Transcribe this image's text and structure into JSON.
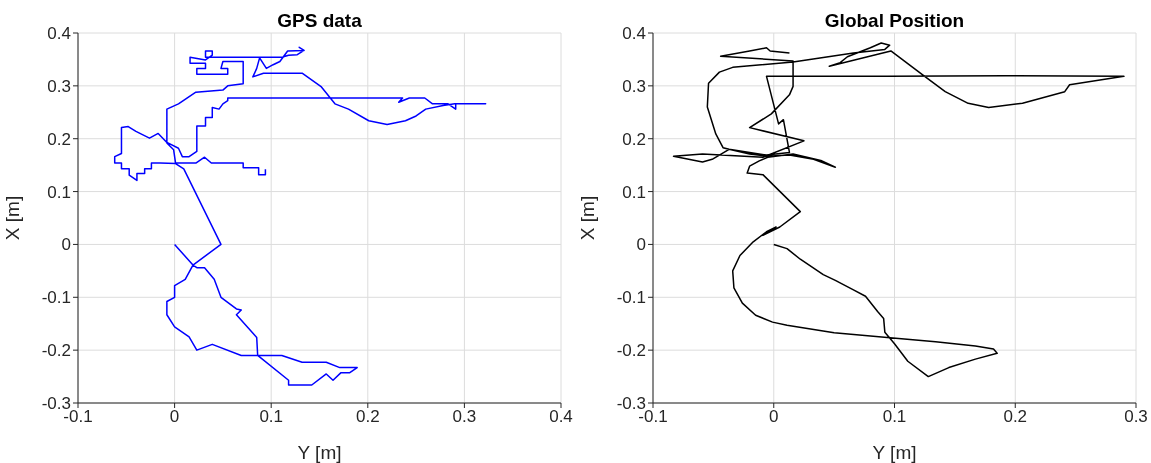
{
  "chart_data": [
    {
      "type": "line",
      "title": "GPS data",
      "xlabel": "Y [m]",
      "ylabel": "X [m]",
      "xlim": [
        -0.1,
        0.4
      ],
      "xticks": [
        -0.1,
        0,
        0.1,
        0.2,
        0.3,
        0.4
      ],
      "ylim": [
        -0.3,
        0.4
      ],
      "yticks": [
        -0.3,
        -0.2,
        -0.1,
        0,
        0.1,
        0.2,
        0.3,
        0.4
      ],
      "grid": true,
      "series": [
        {
          "color": "#0000ff",
          "x": [
            0,
            0.019,
            0.023,
            0.031,
            0.041,
            0.048,
            0.064,
            0.069,
            0.064,
            0.085,
            0.086,
            0.111,
            0.132,
            0.157,
            0.171,
            0.189,
            0.181,
            0.172,
            0.164,
            0.157,
            0.142,
            0.118,
            0.118,
            0.086,
            0.069,
            0.039,
            0.023,
            0.015,
            0,
            -0.008,
            -0.008,
            0,
            0,
            0.011,
            0.019,
            0.048,
            0.0095,
            0.001,
            -0.015,
            -0.024,
            -0.024,
            -0.031,
            -0.031,
            -0.039,
            -0.039,
            -0.047,
            -0.047,
            -0.055,
            -0.055,
            -0.062,
            -0.062,
            -0.055,
            -0.055,
            -0.048,
            -0.04,
            -0.026,
            -0.017,
            -0.008,
            0.004,
            0.008,
            0.015,
            0.023,
            0.023,
            0.032,
            0.032,
            0.039,
            0.039,
            0.046,
            0.05,
            0.055,
            0.055,
            0.236,
            0.232,
            0.243,
            0.259,
            0.267,
            0.283,
            0.291,
            0.291,
            0.322,
            0.29,
            0.278,
            0.26,
            0.25,
            0.239,
            0.22,
            0.201,
            0.18,
            0.166,
            0.152,
            0.132,
            0.092,
            0.081,
            0.085,
            0.088,
            0.095,
            0.102,
            0.109,
            0.113,
            0.117,
            0.134,
            0.129,
            0.134,
            0.127,
            0.118,
            0.111,
            0.032,
            0.032,
            0.039,
            0.039,
            0.032,
            0.016,
            0.016,
            0.032,
            0.032,
            0.023,
            0.023,
            0.055,
            0.055,
            0.048,
            0.05,
            0.071,
            0.071,
            0.071,
            0.055,
            0.05,
            0.022,
            0.004,
            -0.008,
            -0.008,
            -0.001,
            0.001,
            0.022,
            0.031,
            0.038,
            0.071,
            0.071,
            0.087,
            0.087,
            0.094,
            0.094
          ],
          "values": [
            0,
            -0.039,
            -0.044,
            -0.044,
            -0.066,
            -0.1,
            -0.122,
            -0.124,
            -0.133,
            -0.176,
            -0.21,
            -0.21,
            -0.223,
            -0.223,
            -0.233,
            -0.233,
            -0.243,
            -0.243,
            -0.257,
            -0.245,
            -0.266,
            -0.266,
            -0.257,
            -0.21,
            -0.21,
            -0.189,
            -0.2,
            -0.175,
            -0.156,
            -0.133,
            -0.108,
            -0.1,
            -0.078,
            -0.066,
            -0.039,
            0,
            0.143,
            0.153,
            0.154,
            0.154,
            0.143,
            0.143,
            0.134,
            0.134,
            0.121,
            0.131,
            0.143,
            0.143,
            0.154,
            0.154,
            0.166,
            0.172,
            0.221,
            0.223,
            0.214,
            0.201,
            0.21,
            0.193,
            0.182,
            0.166,
            0.166,
            0.176,
            0.224,
            0.224,
            0.24,
            0.24,
            0.259,
            0.256,
            0.266,
            0.272,
            0.277,
            0.277,
            0.269,
            0.277,
            0.277,
            0.266,
            0.266,
            0.256,
            0.266,
            0.266,
            0.266,
            0.263,
            0.256,
            0.243,
            0.234,
            0.227,
            0.234,
            0.256,
            0.266,
            0.298,
            0.324,
            0.324,
            0.317,
            0.333,
            0.353,
            0.333,
            0.34,
            0.346,
            0.356,
            0.366,
            0.367,
            0.373,
            0.367,
            0.359,
            0.358,
            0.354,
            0.354,
            0.366,
            0.366,
            0.358,
            0.349,
            0.354,
            0.343,
            0.343,
            0.333,
            0.333,
            0.322,
            0.322,
            0.333,
            0.333,
            0.346,
            0.346,
            0.311,
            0.304,
            0.3,
            0.292,
            0.288,
            0.266,
            0.256,
            0.192,
            0.179,
            0.154,
            0.154,
            0.165,
            0.154,
            0.154,
            0.145,
            0.145,
            0.132,
            0.132,
            0.142
          ]
        }
      ]
    },
    {
      "type": "line",
      "title": "Global Position",
      "xlabel": "Y [m]",
      "ylabel": "X [m]",
      "xlim": [
        -0.1,
        0.3
      ],
      "xticks": [
        -0.1,
        0,
        0.1,
        0.2,
        0.3
      ],
      "ylim": [
        -0.3,
        0.4
      ],
      "yticks": [
        -0.3,
        -0.2,
        -0.1,
        0,
        0.1,
        0.2,
        0.3,
        0.4
      ],
      "grid": true,
      "series": [
        {
          "color": "#000000",
          "x": [
            0,
            0.011,
            0.022,
            0.041,
            0.051,
            0.066,
            0.076,
            0.086,
            0.091,
            0.092,
            0.1,
            0.111,
            0.128,
            0.145,
            0.167,
            0.185,
            0.182,
            0.167,
            0.134,
            0.094,
            0.05,
            0.011,
            -0.001,
            -0.015,
            -0.026,
            -0.033,
            -0.034,
            -0.028,
            -0.017,
            -0.006,
            0.002,
            -0.009,
            0.005,
            0.022,
            -0.009,
            -0.022,
            -0.02,
            -0.012,
            -0.005,
            0.016,
            0.039,
            0.051,
            0.033,
            0.013,
            -0.006,
            -0.02,
            -0.037,
            -0.042,
            -0.048,
            -0.055,
            -0.054,
            -0.045,
            -0.034,
            0.016,
            0.066,
            0.092,
            0.096,
            0.089,
            0.08,
            0.061,
            0.055,
            0.046,
            0.097,
            0.125,
            0.142,
            0.161,
            0.178,
            0.206,
            0.241,
            0.245,
            0.29,
            0.192,
            0.094,
            -0.006,
            0.004,
            0.008,
            0.013,
            -0.006,
            -0.037,
            -0.051,
            -0.059,
            -0.083,
            -0.059,
            -0.009,
            0.025,
            -0.02,
            -0.002,
            0.013,
            0.016,
            0.016,
            -0.044,
            -0.02,
            -0.006,
            -0.003,
            0.013
          ],
          "values": [
            0,
            -0.008,
            -0.028,
            -0.057,
            -0.068,
            -0.086,
            -0.098,
            -0.127,
            -0.14,
            -0.166,
            -0.188,
            -0.221,
            -0.25,
            -0.233,
            -0.217,
            -0.206,
            -0.198,
            -0.192,
            -0.184,
            -0.176,
            -0.167,
            -0.153,
            -0.147,
            -0.134,
            -0.111,
            -0.082,
            -0.05,
            -0.021,
            0.005,
            0.024,
            0.033,
            0.017,
            0.033,
            0.062,
            0.132,
            0.135,
            0.148,
            0.158,
            0.165,
            0.171,
            0.159,
            0.146,
            0.161,
            0.169,
            0.167,
            0.171,
            0.18,
            0.183,
            0.209,
            0.26,
            0.305,
            0.326,
            0.335,
            0.345,
            0.362,
            0.369,
            0.377,
            0.381,
            0.372,
            0.355,
            0.344,
            0.337,
            0.366,
            0.318,
            0.289,
            0.267,
            0.259,
            0.267,
            0.289,
            0.302,
            0.318,
            0.319,
            0.318,
            0.318,
            0.228,
            0.236,
            0.174,
            0.169,
            0.18,
            0.161,
            0.156,
            0.167,
            0.171,
            0.165,
            0.196,
            0.221,
            0.247,
            0.283,
            0.299,
            0.347,
            0.356,
            0.366,
            0.372,
            0.366,
            0.362
          ]
        }
      ]
    }
  ]
}
